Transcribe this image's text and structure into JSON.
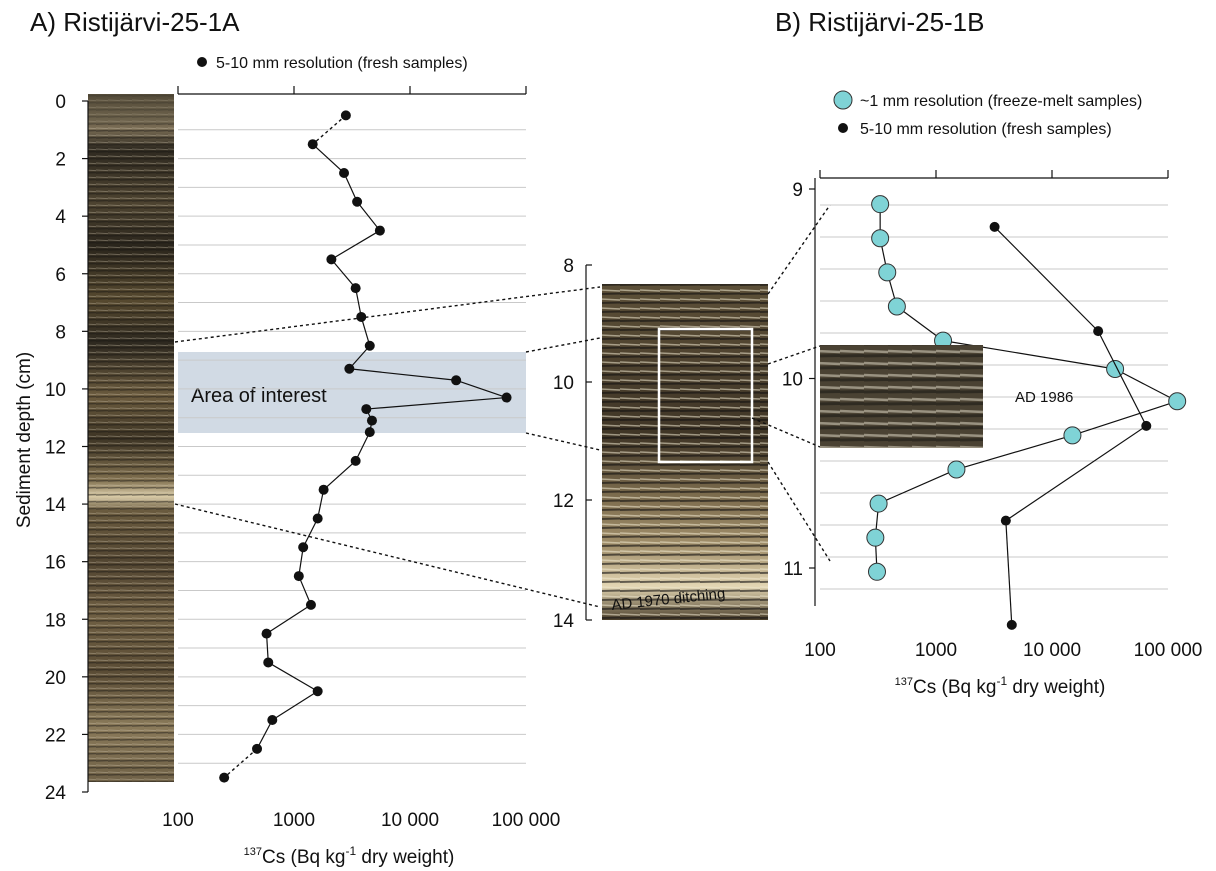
{
  "panels": {
    "a": {
      "title": "A) Ristijärvi-25-1A",
      "legend": "5-10 mm resolution (fresh samples)",
      "ylabel": "Sediment depth (cm)",
      "xlabel_prefix": "137",
      "xlabel_main": "Cs (Bq kg",
      "xlabel_exp": "-1",
      "xlabel_suffix": " dry weight)",
      "annotation": "Area of interest"
    },
    "b": {
      "title": "B) Ristijärvi-25-1B",
      "legend_items": [
        {
          "label": "~1 mm resolution (freeze-melt samples)",
          "color": "#7fd3d6"
        },
        {
          "label": "5-10 mm resolution (fresh samples)",
          "color": "#111111"
        }
      ],
      "xlabel_prefix": "137",
      "xlabel_main": "Cs (Bq kg",
      "xlabel_exp": "-1",
      "xlabel_suffix": " dry weight)",
      "annotation": "AD 1986"
    },
    "core_zoom": {
      "annotation": "AD 1970 ditching",
      "tick_labels": [
        "8",
        "10",
        "12",
        "14"
      ]
    }
  },
  "chart_data": [
    {
      "type": "scatter",
      "title": "A) Ristijärvi-25-1A",
      "xlabel": "137Cs (Bq kg-1 dry weight)",
      "ylabel": "Sediment depth (cm)",
      "x_scale": "log",
      "xlim": [
        100,
        100000
      ],
      "ylim": [
        24,
        0
      ],
      "x_tick_labels": [
        "100",
        "1000",
        "10 000",
        "100 000"
      ],
      "y_tick_labels": [
        "0",
        "2",
        "4",
        "6",
        "8",
        "10",
        "12",
        "14",
        "16",
        "18",
        "20",
        "22",
        "24"
      ],
      "grid": true,
      "legend_position": "top",
      "highlight_band_depth": [
        8.8,
        11.5
      ],
      "series": [
        {
          "name": "5-10 mm resolution (fresh samples)",
          "color": "#111111",
          "points": [
            {
              "x": 2800,
              "y": 0.5
            },
            {
              "x": 1450,
              "y": 1.5
            },
            {
              "x": 2700,
              "y": 2.5
            },
            {
              "x": 3500,
              "y": 3.5
            },
            {
              "x": 5500,
              "y": 4.5
            },
            {
              "x": 2100,
              "y": 5.5
            },
            {
              "x": 3400,
              "y": 6.5
            },
            {
              "x": 3800,
              "y": 7.5
            },
            {
              "x": 4500,
              "y": 8.5
            },
            {
              "x": 3000,
              "y": 9.3
            },
            {
              "x": 25000,
              "y": 9.7
            },
            {
              "x": 68000,
              "y": 10.3
            },
            {
              "x": 4200,
              "y": 10.7
            },
            {
              "x": 4700,
              "y": 11.1
            },
            {
              "x": 4500,
              "y": 11.5
            },
            {
              "x": 3400,
              "y": 12.5
            },
            {
              "x": 1800,
              "y": 13.5
            },
            {
              "x": 1600,
              "y": 14.5
            },
            {
              "x": 1200,
              "y": 15.5
            },
            {
              "x": 1100,
              "y": 16.5
            },
            {
              "x": 1400,
              "y": 17.5
            },
            {
              "x": 580,
              "y": 18.5
            },
            {
              "x": 600,
              "y": 19.5
            },
            {
              "x": 1600,
              "y": 20.5
            },
            {
              "x": 650,
              "y": 21.5
            },
            {
              "x": 480,
              "y": 22.5
            },
            {
              "x": 250,
              "y": 23.5
            }
          ]
        }
      ]
    },
    {
      "type": "scatter",
      "title": "B) Ristijärvi-25-1B",
      "xlabel": "137Cs (Bq kg-1 dry weight)",
      "x_scale": "log",
      "xlim": [
        100,
        100000
      ],
      "ylim": [
        11.3,
        9
      ],
      "x_tick_labels": [
        "100",
        "1000",
        "10 000",
        "100 000"
      ],
      "y_tick_labels": [
        "9",
        "10",
        "11"
      ],
      "grid": true,
      "legend_position": "top",
      "series": [
        {
          "name": "~1 mm resolution (freeze-melt samples)",
          "color": "#7fd3d6",
          "points": [
            {
              "x": 330,
              "y": 9.08
            },
            {
              "x": 330,
              "y": 9.26
            },
            {
              "x": 380,
              "y": 9.44
            },
            {
              "x": 460,
              "y": 9.62
            },
            {
              "x": 1150,
              "y": 9.8
            },
            {
              "x": 35000,
              "y": 9.95
            },
            {
              "x": 120000,
              "y": 10.12
            },
            {
              "x": 15000,
              "y": 10.3
            },
            {
              "x": 1500,
              "y": 10.48
            },
            {
              "x": 320,
              "y": 10.66
            },
            {
              "x": 300,
              "y": 10.84
            },
            {
              "x": 310,
              "y": 11.02
            }
          ]
        },
        {
          "name": "5-10 mm resolution (fresh samples)",
          "color": "#111111",
          "points": [
            {
              "x": 3200,
              "y": 9.2
            },
            {
              "x": 25000,
              "y": 9.75
            },
            {
              "x": 65000,
              "y": 10.25
            },
            {
              "x": 4000,
              "y": 10.75
            },
            {
              "x": 4500,
              "y": 11.3
            }
          ]
        }
      ]
    }
  ]
}
